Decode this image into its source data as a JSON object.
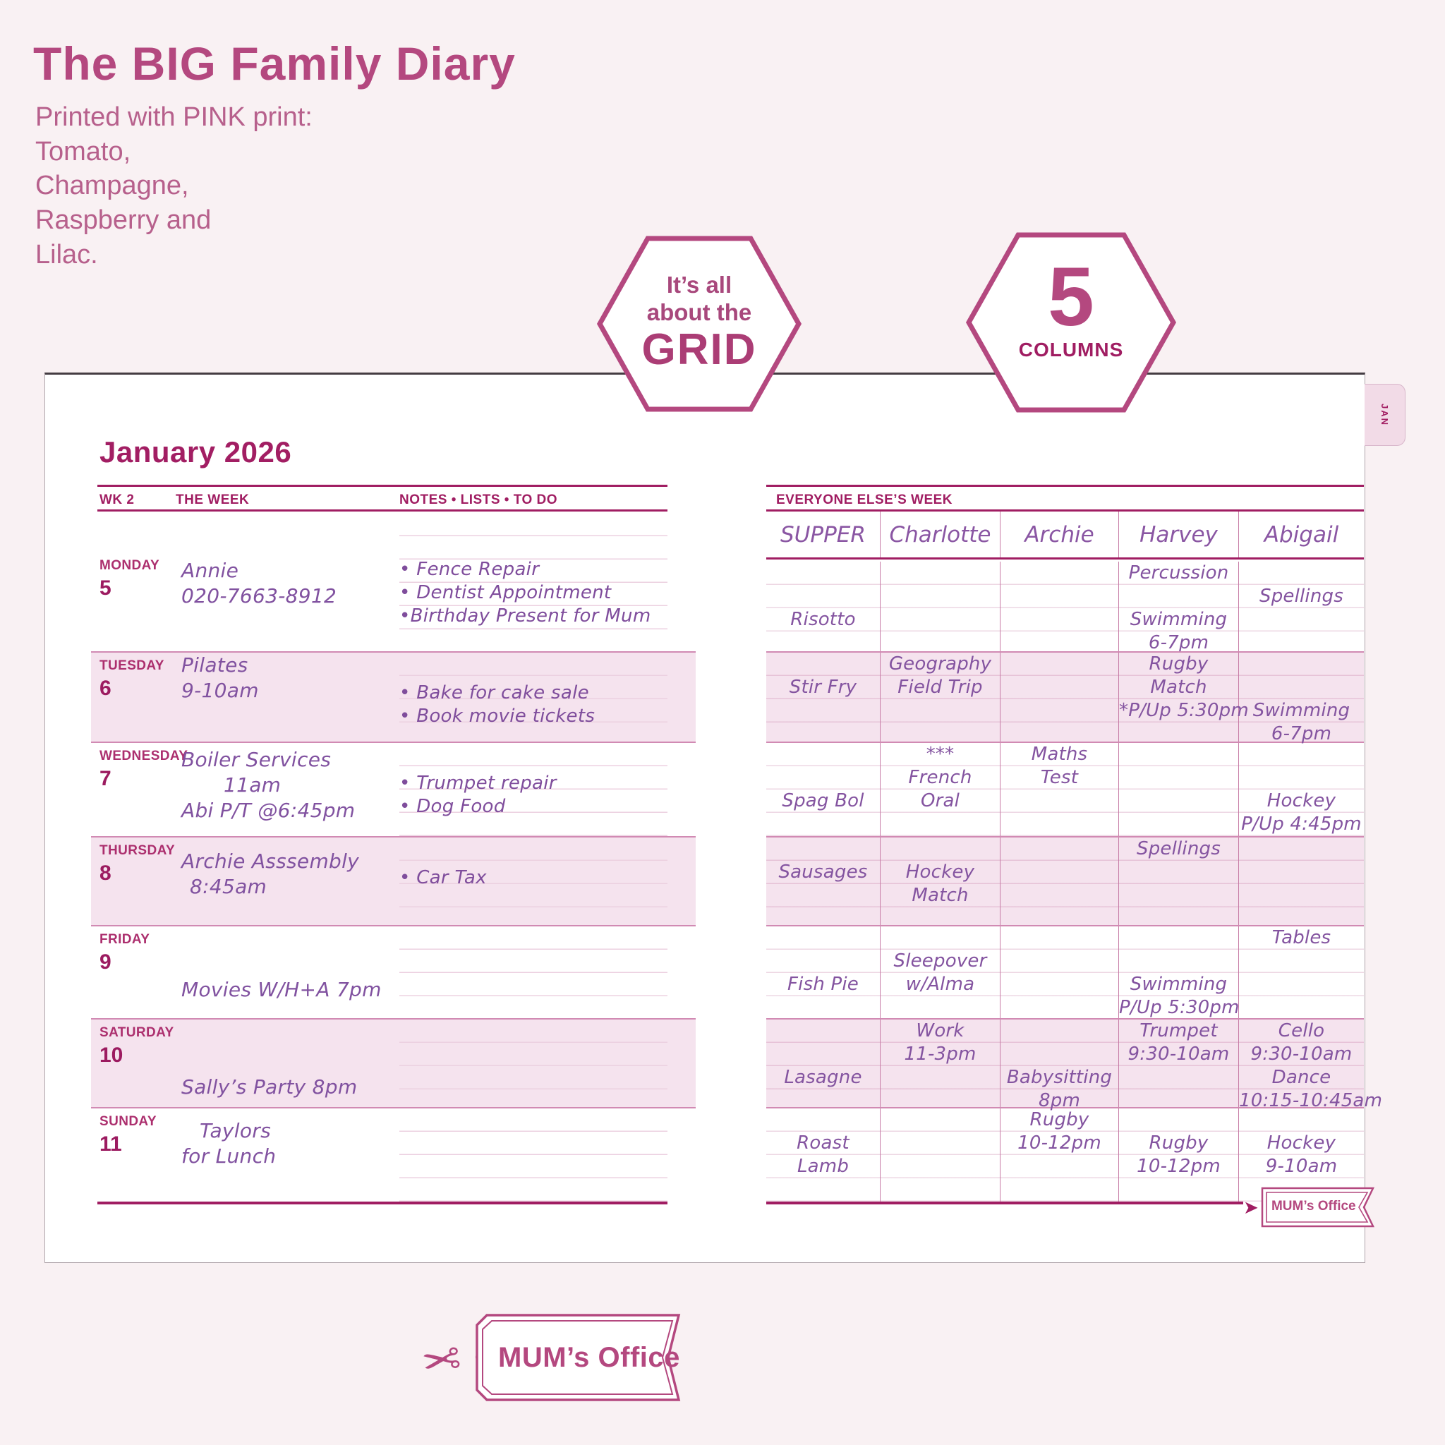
{
  "header": {
    "title": "The BIG Family Diary",
    "subtitle_lines": [
      "Printed with PINK print:",
      "Tomato,",
      "Champagne,",
      "Raspberry and",
      "Lilac."
    ]
  },
  "badges": {
    "grid_badge": {
      "top": "It’s all",
      "middle": "about the",
      "bottom": "GRID"
    },
    "columns_badge": {
      "number": "5",
      "label": "COLUMNS"
    }
  },
  "colors": {
    "brand_pink": "#b4487f",
    "deep_magenta": "#a01d62",
    "handwriting_purple": "#8454a0",
    "shaded_row_pink": "#f5e3ee",
    "background": "#f9f1f3"
  },
  "diary": {
    "month_title": "January 2026",
    "tab_label": "JAN",
    "left_columns": {
      "wk": "WK 2",
      "week": "THE WEEK",
      "notes": "NOTES • LISTS • TO DO"
    },
    "right_title": "EVERYONE ELSE’S WEEK",
    "people_columns": [
      "SUPPER",
      "Charlotte",
      "Archie",
      "Harvey",
      "Abigail"
    ],
    "days": [
      {
        "name": "MONDAY",
        "date": "5",
        "shaded": false,
        "week": [
          "Annie",
          "020-7663-8912"
        ],
        "notes": [
          "• Fence Repair",
          "• Dentist Appointment",
          "•Birthday Present for Mum"
        ],
        "cells": {
          "SUPPER": [
            "",
            "",
            "Risotto"
          ],
          "Charlotte": [],
          "Archie": [],
          "Harvey": [
            "Percussion",
            "",
            "Swimming",
            "6-7pm"
          ],
          "Abigail": [
            "",
            "Spellings"
          ]
        }
      },
      {
        "name": "TUESDAY",
        "date": "6",
        "shaded": true,
        "week": [
          "Pilates",
          "9-10am"
        ],
        "notes": [
          "",
          "• Bake for cake sale",
          "• Book movie tickets"
        ],
        "cells": {
          "SUPPER": [
            "",
            "Stir Fry"
          ],
          "Charlotte": [
            "Geography",
            "Field Trip"
          ],
          "Archie": [],
          "Harvey": [
            "Rugby",
            "Match",
            "*P/Up 5:30pm"
          ],
          "Abigail": [
            "",
            "",
            "Swimming",
            "6-7pm"
          ]
        }
      },
      {
        "name": "WEDNESDAY",
        "date": "7",
        "shaded": false,
        "week": [
          "Boiler Services",
          "11am",
          "Abi P/T @6:45pm"
        ],
        "notes": [
          "",
          "• Trumpet repair",
          "•  Dog Food"
        ],
        "cells": {
          "SUPPER": [
            "",
            "",
            "Spag Bol"
          ],
          "Charlotte": [
            "***",
            "French",
            "Oral"
          ],
          "Archie": [
            "Maths",
            "Test"
          ],
          "Harvey": [],
          "Abigail": [
            "",
            "",
            "Hockey",
            "P/Up 4:45pm"
          ]
        }
      },
      {
        "name": "THURSDAY",
        "date": "8",
        "shaded": true,
        "week": [
          "Archie Asssembly",
          "8:45am"
        ],
        "notes": [
          "",
          "• Car Tax"
        ],
        "cells": {
          "SUPPER": [
            "",
            "Sausages"
          ],
          "Charlotte": [
            "",
            "Hockey",
            "Match"
          ],
          "Archie": [],
          "Harvey": [
            "Spellings"
          ],
          "Abigail": []
        }
      },
      {
        "name": "FRIDAY",
        "date": "9",
        "shaded": false,
        "week": [
          "",
          "",
          "Movies W/H+A 7pm"
        ],
        "notes": [],
        "cells": {
          "SUPPER": [
            "",
            "",
            "Fish Pie"
          ],
          "Charlotte": [
            "",
            "Sleepover",
            "w/Alma"
          ],
          "Archie": [],
          "Harvey": [
            "",
            "",
            "Swimming",
            "P/Up 5:30pm"
          ],
          "Abigail": [
            "Tables"
          ]
        }
      },
      {
        "name": "SATURDAY",
        "date": "10",
        "shaded": true,
        "week": [
          "",
          "",
          "Sally’s Party 8pm"
        ],
        "notes": [],
        "cells": {
          "SUPPER": [
            "",
            "",
            "Lasagne"
          ],
          "Charlotte": [
            "Work",
            "11-3pm"
          ],
          "Archie": [
            "",
            "",
            "Babysitting",
            "8pm"
          ],
          "Harvey": [
            "Trumpet",
            "9:30-10am"
          ],
          "Abigail": [
            "Cello",
            "9:30-10am",
            "Dance",
            "10:15-10:45am"
          ]
        }
      },
      {
        "name": "SUNDAY",
        "date": "11",
        "shaded": false,
        "week": [
          "Taylors",
          "for Lunch"
        ],
        "notes": [],
        "cells": {
          "SUPPER": [
            "",
            "Roast",
            "Lamb"
          ],
          "Charlotte": [],
          "Archie": [
            "Rugby",
            "10-12pm"
          ],
          "Harvey": [
            "",
            "Rugby",
            "10-12pm"
          ],
          "Abigail": [
            "",
            "Hockey",
            "9-10am"
          ]
        }
      }
    ],
    "corner_tag": "MUM’s Office"
  },
  "footer": {
    "logo_text": "MUM’s Office"
  }
}
